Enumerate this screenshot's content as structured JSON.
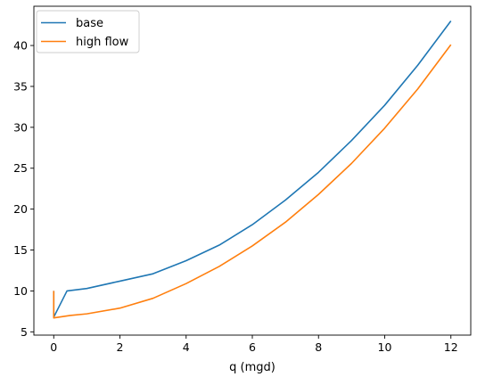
{
  "chart_data": {
    "type": "line",
    "title": "",
    "xlabel": "q (mgd)",
    "ylabel": "",
    "xlim": [
      -0.6,
      12.6
    ],
    "ylim": [
      4.6,
      44.8
    ],
    "xticks": [
      0,
      2,
      4,
      6,
      8,
      10,
      12
    ],
    "yticks": [
      5,
      10,
      15,
      20,
      25,
      30,
      35,
      40
    ],
    "grid": false,
    "legend_position": "top-left",
    "series": [
      {
        "name": "base",
        "color": "#1f77b4",
        "x": [
          0,
          0,
          0.4,
          1,
          2,
          3,
          4,
          5,
          6,
          7,
          8,
          9,
          10,
          11,
          12
        ],
        "y": [
          10.0,
          6.8,
          10.0,
          10.3,
          11.2,
          12.1,
          13.7,
          15.6,
          18.1,
          21.1,
          24.5,
          28.4,
          32.7,
          37.6,
          43.0
        ]
      },
      {
        "name": "high flow",
        "color": "#ff7f0e",
        "x": [
          0,
          0,
          0.5,
          1,
          2,
          3,
          4,
          5,
          6,
          7,
          8,
          9,
          10,
          11,
          12
        ],
        "y": [
          10.0,
          6.7,
          7.0,
          7.2,
          7.9,
          9.1,
          10.9,
          13.0,
          15.5,
          18.4,
          21.8,
          25.6,
          29.9,
          34.7,
          40.1
        ]
      }
    ]
  }
}
